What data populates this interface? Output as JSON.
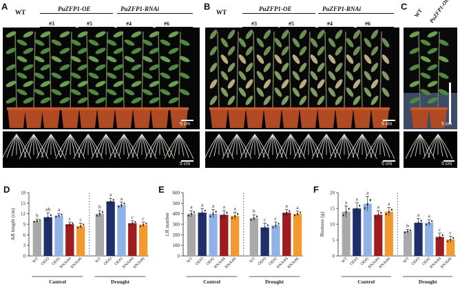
{
  "panels": {
    "A": {
      "letter": "A",
      "wt": "WT",
      "oe": "PuZFP1-OE",
      "rnai": "PuZFP1-RNAi",
      "lines": [
        "#3",
        "#5",
        "#4",
        "#6"
      ],
      "scale_top": "5 cm",
      "scale_bottom": "5 cm"
    },
    "B": {
      "letter": "B",
      "wt": "WT",
      "oe": "PuZFP1-OE",
      "rnai": "PuZFP1-RNAi",
      "lines": [
        "#3",
        "#5",
        "#4",
        "#6"
      ],
      "scale_top": "5 cm",
      "scale_bottom": "5 cm"
    },
    "C": {
      "letter": "C",
      "wt": "WT",
      "oe": "PuZFP1-OE",
      "scale_top": "5 cm",
      "scale_bottom": "5 cm"
    },
    "D": {
      "letter": "D"
    },
    "E": {
      "letter": "E"
    },
    "F": {
      "letter": "F"
    }
  },
  "colors": {
    "WT": "#a9a9a9",
    "OE3": "#1f2f6b",
    "OE5": "#8fb3e6",
    "RNAi4": "#9e1b1e",
    "RNAi6": "#f29a30"
  },
  "chart_data": [
    {
      "type": "bar",
      "panel": "D",
      "ylabel": "AR length (cm)",
      "ylim": [
        0,
        18
      ],
      "yticks": [
        "0",
        "3",
        "6",
        "9",
        "12",
        "15",
        "18"
      ],
      "categories": [
        "WT",
        "OE#3",
        "OE#5",
        "RNAi#4",
        "RNAi#6",
        "WT",
        "OE#3",
        "OE#5",
        "RNAi#4",
        "RNAi#6"
      ],
      "groups": [
        "Control",
        "Drought"
      ],
      "values": [
        10.0,
        11.0,
        11.5,
        9.0,
        8.5,
        12.0,
        15.5,
        14.5,
        9.3,
        8.9
      ],
      "errors": [
        0.5,
        1.2,
        0.6,
        0.6,
        0.8,
        0.9,
        0.9,
        0.8,
        0.7,
        0.7
      ],
      "letters": [
        "b",
        "ab",
        "a",
        "c",
        "c",
        "b",
        "a",
        "a",
        "c",
        "c"
      ]
    },
    {
      "type": "bar",
      "panel": "E",
      "ylabel": "LR number",
      "ylim": [
        0,
        600
      ],
      "yticks": [
        "0",
        "100",
        "200",
        "300",
        "400",
        "500",
        "600"
      ],
      "categories": [
        "WT",
        "OE#3",
        "OE#5",
        "RNAi#4",
        "RNAi#6",
        "WT",
        "OE#3",
        "OE#5",
        "RNAi#4",
        "RNAi#6"
      ],
      "groups": [
        "Control",
        "Drought"
      ],
      "values": [
        400,
        410,
        400,
        390,
        380,
        360,
        270,
        290,
        410,
        400
      ],
      "errors": [
        30,
        40,
        40,
        40,
        35,
        30,
        40,
        30,
        30,
        25
      ],
      "letters": [
        "a",
        "a",
        "a",
        "a",
        "a",
        "b",
        "c",
        "c",
        "a",
        "a"
      ]
    },
    {
      "type": "bar",
      "panel": "F",
      "ylabel": "Biomass (g)",
      "ylim": [
        0,
        20
      ],
      "yticks": [
        "0",
        "5",
        "10",
        "15",
        "20"
      ],
      "categories": [
        "WT",
        "OE#3",
        "OE#5",
        "RNAi#4",
        "RNAi#6",
        "WT",
        "OE#3",
        "OE#5",
        "RNAi#4",
        "RNAi#6"
      ],
      "groups": [
        "Control",
        "Drought"
      ],
      "values": [
        14.0,
        15.0,
        16.5,
        13.0,
        14.0,
        7.8,
        10.5,
        10.5,
        6.0,
        5.2
      ],
      "errors": [
        1.8,
        1.8,
        2.3,
        1.3,
        1.3,
        0.6,
        1.3,
        1.0,
        1.2,
        1.0
      ],
      "letters": [
        "a",
        "a",
        "a",
        "a",
        "a",
        "b",
        "a",
        "a",
        "c",
        "c"
      ]
    }
  ]
}
